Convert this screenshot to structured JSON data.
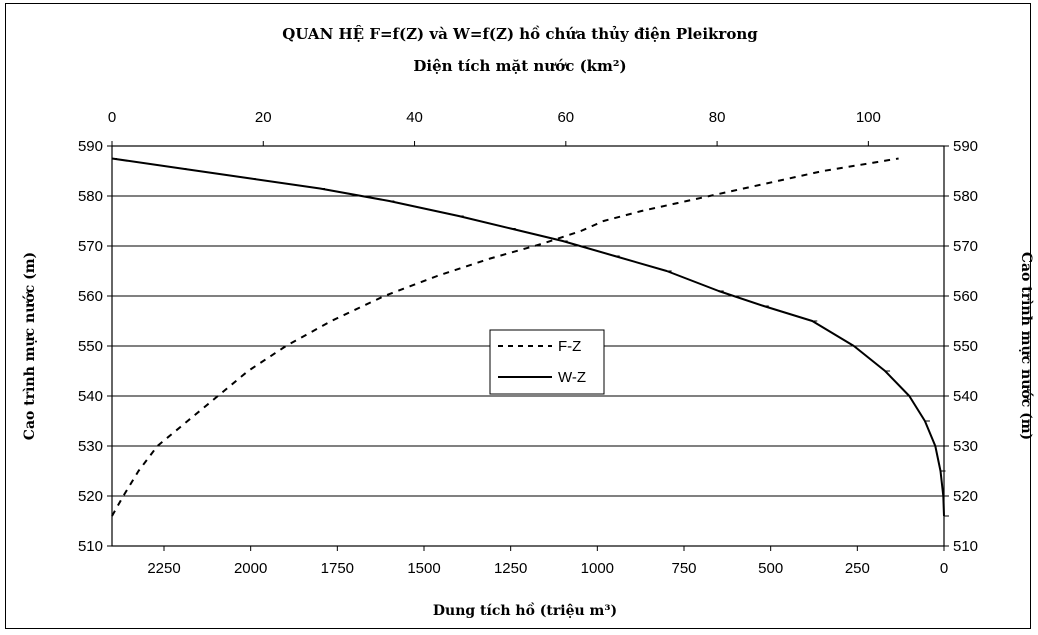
{
  "chart_data": {
    "type": "line",
    "title": "QUAN HỆ F=f(Z) và W=f(Z) hồ chứa thủy điện Pleikrong",
    "x_top_label": "Diện tích mặt nước (km²)",
    "x_bottom_label": "Dung tích hồ (triệu m³)",
    "y_left_label": "Cao trình mực nước (m)",
    "y_right_label": "Cao trình mực nước (m)",
    "ylim": [
      510,
      590
    ],
    "y_ticks": [
      "510",
      "520",
      "530",
      "540",
      "550",
      "560",
      "570",
      "580",
      "590"
    ],
    "x_top_lim": [
      0,
      110
    ],
    "x_top_ticks": [
      "0",
      "20",
      "40",
      "60",
      "80",
      "100"
    ],
    "x_bottom_lim": [
      2400,
      0
    ],
    "x_bottom_ticks": [
      "2250",
      "2000",
      "1750",
      "1500",
      "1250",
      "1000",
      "750",
      "500",
      "250",
      "0"
    ],
    "grid": "horizontal",
    "legend_position": "center",
    "series": [
      {
        "name": "F-Z",
        "axis": "top",
        "style": "dashed",
        "color": "#000000",
        "points": [
          [
            0,
            516
          ],
          [
            1.5,
            520
          ],
          [
            3.5,
            525
          ],
          [
            6,
            530
          ],
          [
            10,
            535
          ],
          [
            14,
            540
          ],
          [
            18,
            545
          ],
          [
            23,
            550
          ],
          [
            29,
            555
          ],
          [
            36,
            560
          ],
          [
            43,
            564
          ],
          [
            50,
            567.5
          ],
          [
            57,
            570.5
          ],
          [
            62,
            573
          ],
          [
            65,
            575
          ],
          [
            70,
            577
          ],
          [
            76,
            579
          ],
          [
            82,
            581
          ],
          [
            88,
            583
          ],
          [
            94,
            585
          ],
          [
            100,
            586.5
          ],
          [
            104,
            587.5
          ]
        ]
      },
      {
        "name": "W-Z",
        "axis": "bottom",
        "style": "solid",
        "color": "#000000",
        "points": [
          [
            0,
            516
          ],
          [
            2,
            520
          ],
          [
            10,
            525
          ],
          [
            25,
            530
          ],
          [
            55,
            535
          ],
          [
            100,
            540
          ],
          [
            170,
            545
          ],
          [
            260,
            550
          ],
          [
            380,
            555
          ],
          [
            520,
            558
          ],
          [
            650,
            561
          ],
          [
            800,
            565
          ],
          [
            950,
            568
          ],
          [
            1100,
            571
          ],
          [
            1250,
            573.5
          ],
          [
            1400,
            576
          ],
          [
            1600,
            579
          ],
          [
            1800,
            581.5
          ],
          [
            2000,
            583.5
          ],
          [
            2200,
            585.5
          ],
          [
            2400,
            587.5
          ]
        ]
      }
    ]
  }
}
